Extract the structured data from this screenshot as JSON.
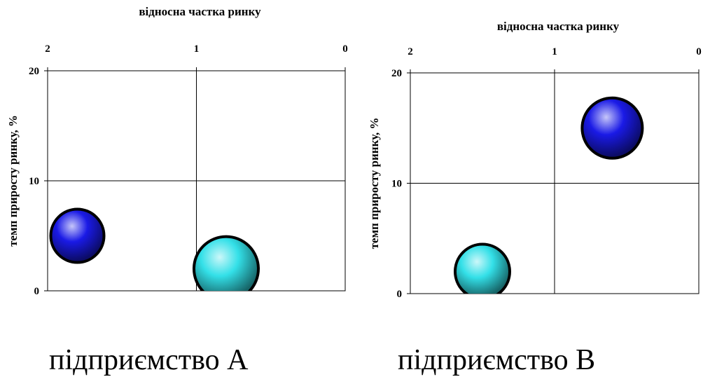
{
  "chart_data": [
    {
      "type": "scatter",
      "title": "відносна частка ринку",
      "ylabel": "темп приросту ринку, %",
      "xlim": [
        2,
        0
      ],
      "ylim": [
        0,
        20
      ],
      "x_ticks": [
        "2",
        "1",
        "0"
      ],
      "y_ticks": [
        "20",
        "10",
        "0"
      ],
      "grid": true,
      "series": [
        {
          "points": [
            {
              "x": 1.8,
              "y": 5,
              "color": "#1a1ae6"
            },
            {
              "x": 0.8,
              "y": 2,
              "color": "#33e0e8"
            }
          ]
        }
      ],
      "caption": "підприємство А"
    },
    {
      "type": "scatter",
      "title": "відносна частка ринку",
      "ylabel": "темп приросту ринку, %",
      "xlim": [
        2,
        0
      ],
      "ylim": [
        0,
        20
      ],
      "x_ticks": [
        "2",
        "1",
        "0"
      ],
      "y_ticks": [
        "20",
        "10",
        "0"
      ],
      "grid": true,
      "series": [
        {
          "points": [
            {
              "x": 0.6,
              "y": 15,
              "color": "#1a1ae6"
            },
            {
              "x": 1.5,
              "y": 2,
              "color": "#33e0e8"
            }
          ]
        }
      ],
      "caption": "підприємство В"
    }
  ]
}
